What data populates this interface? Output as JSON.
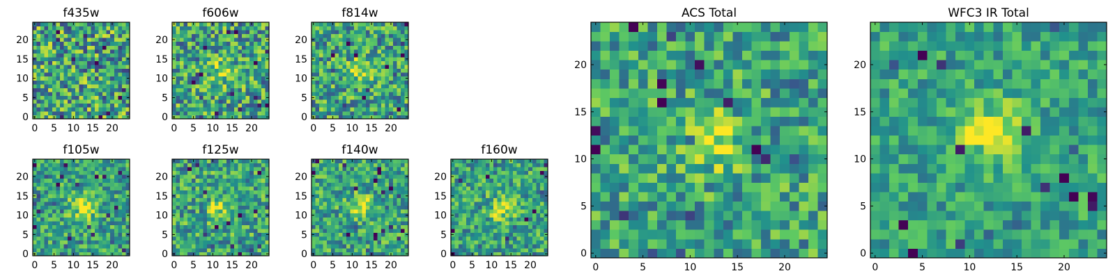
{
  "figure": {
    "colormap": "viridis",
    "colormap_stops": [
      "#440154",
      "#3b528b",
      "#21918c",
      "#5ec962",
      "#fde725"
    ],
    "axes_color": "#000000",
    "background": "#ffffff"
  },
  "chart_data": [
    {
      "type": "heatmap",
      "title": "f435w",
      "grid_size": 25,
      "xlim": [
        -0.5,
        24.5
      ],
      "ylim": [
        -0.5,
        24.5
      ],
      "xticks": [
        0,
        5,
        10,
        15,
        20
      ],
      "yticks": [
        0,
        5,
        10,
        15,
        20
      ],
      "source_center": null,
      "source_amplitude": 0.0,
      "noise": 0.42,
      "value_range": [
        0,
        1
      ],
      "grid": false
    },
    {
      "type": "heatmap",
      "title": "f606w",
      "grid_size": 25,
      "xlim": [
        -0.5,
        24.5
      ],
      "ylim": [
        -0.5,
        24.5
      ],
      "xticks": [
        0,
        5,
        10,
        15,
        20
      ],
      "yticks": [
        0,
        5,
        10,
        15,
        20
      ],
      "source_center": [
        12,
        12
      ],
      "source_amplitude": 0.25,
      "noise": 0.38,
      "value_range": [
        0,
        1
      ],
      "grid": false
    },
    {
      "type": "heatmap",
      "title": "f814w",
      "grid_size": 25,
      "xlim": [
        -0.5,
        24.5
      ],
      "ylim": [
        -0.5,
        24.5
      ],
      "xticks": [
        0,
        5,
        10,
        15,
        20
      ],
      "yticks": [
        0,
        5,
        10,
        15,
        20
      ],
      "source_center": [
        12,
        12
      ],
      "source_amplitude": 0.3,
      "noise": 0.35,
      "value_range": [
        0,
        1
      ],
      "grid": false
    },
    {
      "type": "heatmap",
      "title": "f105w",
      "grid_size": 25,
      "xlim": [
        -0.5,
        24.5
      ],
      "ylim": [
        -0.5,
        24.5
      ],
      "xticks": [
        0,
        5,
        10,
        15,
        20
      ],
      "yticks": [
        0,
        5,
        10,
        15,
        20
      ],
      "source_center": [
        12,
        12
      ],
      "source_amplitude": 0.4,
      "noise": 0.28,
      "value_range": [
        0,
        1
      ],
      "grid": false
    },
    {
      "type": "heatmap",
      "title": "f125w",
      "grid_size": 25,
      "xlim": [
        -0.5,
        24.5
      ],
      "ylim": [
        -0.5,
        24.5
      ],
      "xticks": [
        0,
        5,
        10,
        15,
        20
      ],
      "yticks": [
        0,
        5,
        10,
        15,
        20
      ],
      "source_center": [
        12,
        12
      ],
      "source_amplitude": 0.3,
      "noise": 0.32,
      "value_range": [
        0,
        1
      ],
      "grid": false
    },
    {
      "type": "heatmap",
      "title": "f140w",
      "grid_size": 25,
      "xlim": [
        -0.5,
        24.5
      ],
      "ylim": [
        -0.5,
        24.5
      ],
      "xticks": [
        0,
        5,
        10,
        15,
        20
      ],
      "yticks": [
        0,
        5,
        10,
        15,
        20
      ],
      "source_center": [
        12,
        12
      ],
      "source_amplitude": 0.35,
      "noise": 0.3,
      "value_range": [
        0,
        1
      ],
      "grid": false
    },
    {
      "type": "heatmap",
      "title": "f160w",
      "grid_size": 25,
      "xlim": [
        -0.5,
        24.5
      ],
      "ylim": [
        -0.5,
        24.5
      ],
      "xticks": [
        0,
        5,
        10,
        15,
        20
      ],
      "yticks": [
        0,
        5,
        10,
        15,
        20
      ],
      "source_center": [
        13,
        12
      ],
      "source_amplitude": 0.35,
      "noise": 0.3,
      "value_range": [
        0,
        1
      ],
      "grid": false
    },
    {
      "type": "heatmap",
      "title": "ACS Total",
      "grid_size": 25,
      "xlim": [
        -0.5,
        24.5
      ],
      "ylim": [
        -0.5,
        24.5
      ],
      "xticks": [
        0,
        5,
        10,
        15,
        20
      ],
      "yticks": [
        0,
        5,
        10,
        15,
        20
      ],
      "source_center": [
        12,
        12
      ],
      "source_amplitude": 0.4,
      "noise": 0.3,
      "value_range": [
        0,
        1
      ],
      "grid": false
    },
    {
      "type": "heatmap",
      "title": "WFC3 IR Total",
      "grid_size": 25,
      "xlim": [
        -0.5,
        24.5
      ],
      "ylim": [
        -0.5,
        24.5
      ],
      "xticks": [
        0,
        5,
        10,
        15,
        20
      ],
      "yticks": [
        0,
        5,
        10,
        15,
        20
      ],
      "source_center": [
        12,
        13
      ],
      "source_amplitude": 0.45,
      "noise": 0.22,
      "value_range": [
        0,
        1
      ],
      "grid": false
    }
  ]
}
